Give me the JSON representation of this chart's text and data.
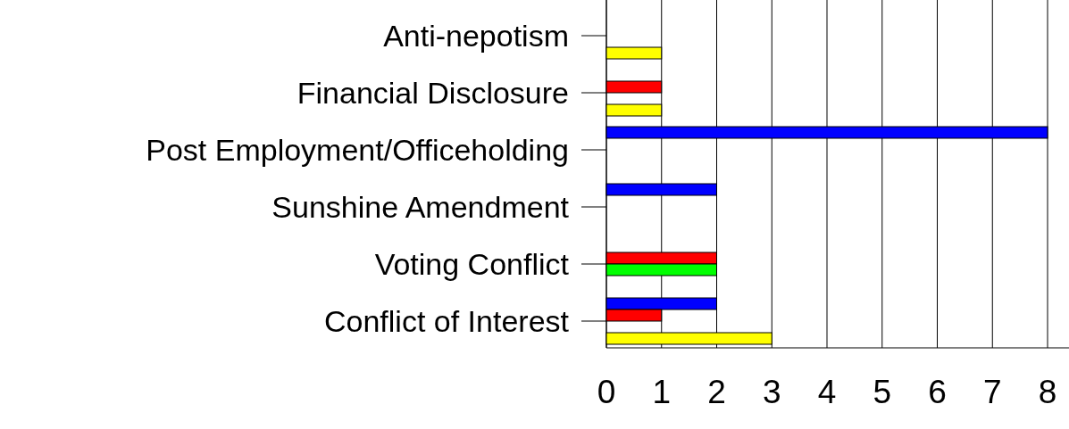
{
  "chart_data": {
    "type": "bar",
    "orientation": "horizontal",
    "categories": [
      "Anti-nepotism",
      "Financial Disclosure",
      "Post Employment/Officeholding",
      "Sunshine Amendment",
      "Voting Conflict",
      "Conflict of Interest"
    ],
    "series": [
      {
        "color": "#0000ff",
        "values": [
          0,
          0,
          8,
          2,
          0,
          2
        ]
      },
      {
        "color": "#ff0000",
        "values": [
          0,
          1,
          0,
          0,
          2,
          1
        ]
      },
      {
        "color": "#00ff00",
        "values": [
          0,
          0,
          0,
          0,
          2,
          0
        ]
      },
      {
        "color": "#ffff00",
        "values": [
          1,
          1,
          0,
          0,
          0,
          3
        ]
      }
    ],
    "xlim": [
      0,
      8
    ],
    "xticks": [
      0,
      1,
      2,
      3,
      4,
      5,
      6,
      7,
      8
    ],
    "grid": "x"
  }
}
